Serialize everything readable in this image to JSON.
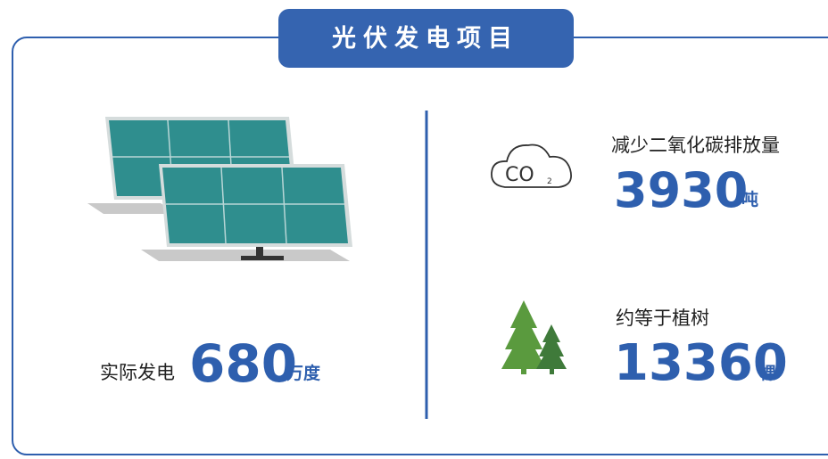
{
  "header": {
    "title": "光伏发电项目"
  },
  "generation": {
    "label": "实际发电",
    "value": "680",
    "unit": "万度"
  },
  "co2_icon": {
    "text": "CO",
    "subscript": "2"
  },
  "co2_reduction": {
    "label": "减少二氧化碳排放量",
    "value": "3930",
    "unit": "吨"
  },
  "trees": {
    "label": "约等于植树",
    "value": "13360",
    "unit": "棵"
  }
}
